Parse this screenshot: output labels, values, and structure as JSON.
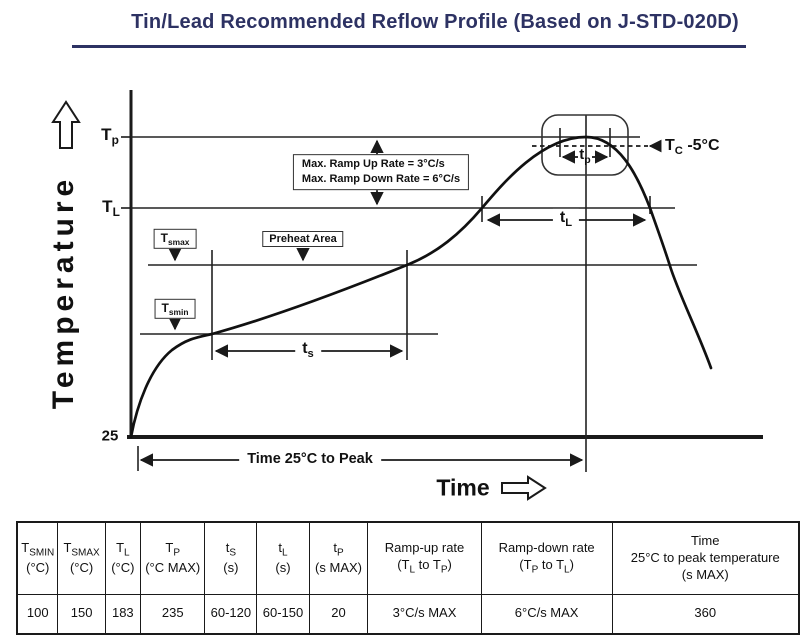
{
  "title": "Tin/Lead Recommended Reflow Profile (Based on J-STD-020D)",
  "chart": {
    "y_axis_title": "Temperature",
    "x_axis_title": "Time",
    "ticks": {
      "tp": [
        [
          "t",
          "T"
        ],
        [
          "s",
          "p"
        ]
      ],
      "tl": [
        [
          "t",
          "T"
        ],
        [
          "s",
          "L"
        ]
      ],
      "origin": "25"
    },
    "boxes": {
      "tsmax": [
        [
          "t",
          "T"
        ],
        [
          "s",
          "smax"
        ]
      ],
      "tsmin": [
        [
          "t",
          "T"
        ],
        [
          "s",
          "smin"
        ]
      ],
      "preheat": "Preheat Area",
      "ramp_line1": "Max. Ramp Up Rate = 3°C/s",
      "ramp_line2": "Max. Ramp Down Rate = 6°C/s"
    },
    "spans": {
      "ts": [
        [
          "t",
          "t"
        ],
        [
          "s",
          "s"
        ]
      ],
      "tl": [
        [
          "t",
          "t"
        ],
        [
          "s",
          "L"
        ]
      ],
      "tp": [
        [
          "t",
          "t"
        ],
        [
          "s",
          "p"
        ]
      ],
      "time_to_peak": "Time 25°C to Peak"
    },
    "tc_label": [
      [
        "t",
        "T"
      ],
      [
        "s",
        "C"
      ],
      [
        "t",
        " -5°C"
      ]
    ]
  },
  "chart_data": {
    "type": "line",
    "title": "Tin/Lead Recommended Reflow Profile (Based on J-STD-020D)",
    "xlabel": "Time",
    "ylabel": "Temperature",
    "x_axis_note": "time axis unscaled (no numeric ticks shown)",
    "y_origin_label_C": 25,
    "reference_levels_C": {
      "T_smin": 100,
      "T_smax": 150,
      "T_L": 183,
      "T_p": 235
    },
    "annotations": [
      "Max. Ramp Up Rate = 3°C/s",
      "Max. Ramp Down Rate = 6°C/s",
      "Preheat Area",
      "Tc -5°C",
      "ts",
      "tL",
      "tp",
      "Time 25°C to Peak"
    ],
    "profile_points": [
      {
        "x_frac": 0.0,
        "temp_C": 25,
        "note": "start at 25°C"
      },
      {
        "x_frac": 0.13,
        "temp_C": 100,
        "note": "reach Tsmin, soak ts begins"
      },
      {
        "x_frac": 0.44,
        "temp_C": 150,
        "note": "reach Tsmax, soak ts ends (Preheat Area)"
      },
      {
        "x_frac": 0.56,
        "temp_C": 183,
        "note": "cross TL rising, tL begins"
      },
      {
        "x_frac": 0.72,
        "temp_C": 235,
        "note": "peak Tp, tp window at Tc -5°C"
      },
      {
        "x_frac": 0.82,
        "temp_C": 183,
        "note": "cross TL falling, tL ends"
      },
      {
        "x_frac": 0.89,
        "temp_C": 150,
        "note": "cross Tsmax falling"
      },
      {
        "x_frac": 0.92,
        "temp_C": 75,
        "note": "cool-down, end of trace"
      }
    ],
    "parameters": {
      "TSMIN_C": 100,
      "TSMAX_C": 150,
      "TL_C": 183,
      "TP_C_MAX": 235,
      "tS_s": "60-120",
      "tL_s": "60-150",
      "tP_s_MAX": 20,
      "ramp_up_rate_TL_to_TP": "3°C/s MAX",
      "ramp_down_rate_TP_to_TL": "6°C/s MAX",
      "time_25C_to_peak_s_MAX": 360
    }
  },
  "table": {
    "headers": [
      {
        "lines": [
          [
            [
              "t",
              "T"
            ],
            [
              "s",
              "SMIN"
            ]
          ],
          [
            [
              "t",
              "(°C)"
            ]
          ]
        ]
      },
      {
        "lines": [
          [
            [
              "t",
              "T"
            ],
            [
              "s",
              "SMAX"
            ]
          ],
          [
            [
              "t",
              "(°C)"
            ]
          ]
        ]
      },
      {
        "lines": [
          [
            [
              "t",
              "T"
            ],
            [
              "s",
              "L"
            ]
          ],
          [
            [
              "t",
              "(°C)"
            ]
          ]
        ]
      },
      {
        "lines": [
          [
            [
              "t",
              "T"
            ],
            [
              "s",
              "P"
            ]
          ],
          [
            [
              "t",
              "(°C MAX)"
            ]
          ]
        ]
      },
      {
        "lines": [
          [
            [
              "t",
              "t"
            ],
            [
              "s",
              "S"
            ]
          ],
          [
            [
              "t",
              "(s)"
            ]
          ]
        ]
      },
      {
        "lines": [
          [
            [
              "t",
              "t"
            ],
            [
              "s",
              "L"
            ]
          ],
          [
            [
              "t",
              "(s)"
            ]
          ]
        ]
      },
      {
        "lines": [
          [
            [
              "t",
              "t"
            ],
            [
              "s",
              "P"
            ]
          ],
          [
            [
              "t",
              "(s MAX)"
            ]
          ]
        ]
      },
      {
        "lines": [
          [
            [
              "t",
              "Ramp-up rate"
            ]
          ],
          [
            [
              "t",
              "(T"
            ],
            [
              "s",
              "L"
            ],
            [
              "t",
              " to T"
            ],
            [
              "s",
              "P"
            ],
            [
              "t",
              ")"
            ]
          ]
        ]
      },
      {
        "lines": [
          [
            [
              "t",
              "Ramp-down rate"
            ]
          ],
          [
            [
              "t",
              "(T"
            ],
            [
              "s",
              "P"
            ],
            [
              "t",
              " to T"
            ],
            [
              "s",
              "L"
            ],
            [
              "t",
              ")"
            ]
          ]
        ]
      },
      {
        "lines": [
          [
            [
              "t",
              "Time"
            ]
          ],
          [
            [
              "t",
              "25°C to peak temperature"
            ]
          ],
          [
            [
              "t",
              "(s MAX)"
            ]
          ]
        ]
      }
    ],
    "values": [
      "100",
      "150",
      "183",
      "235",
      "60-120",
      "60-150",
      "20",
      "3°C/s MAX",
      "6°C/s MAX",
      "360"
    ]
  }
}
